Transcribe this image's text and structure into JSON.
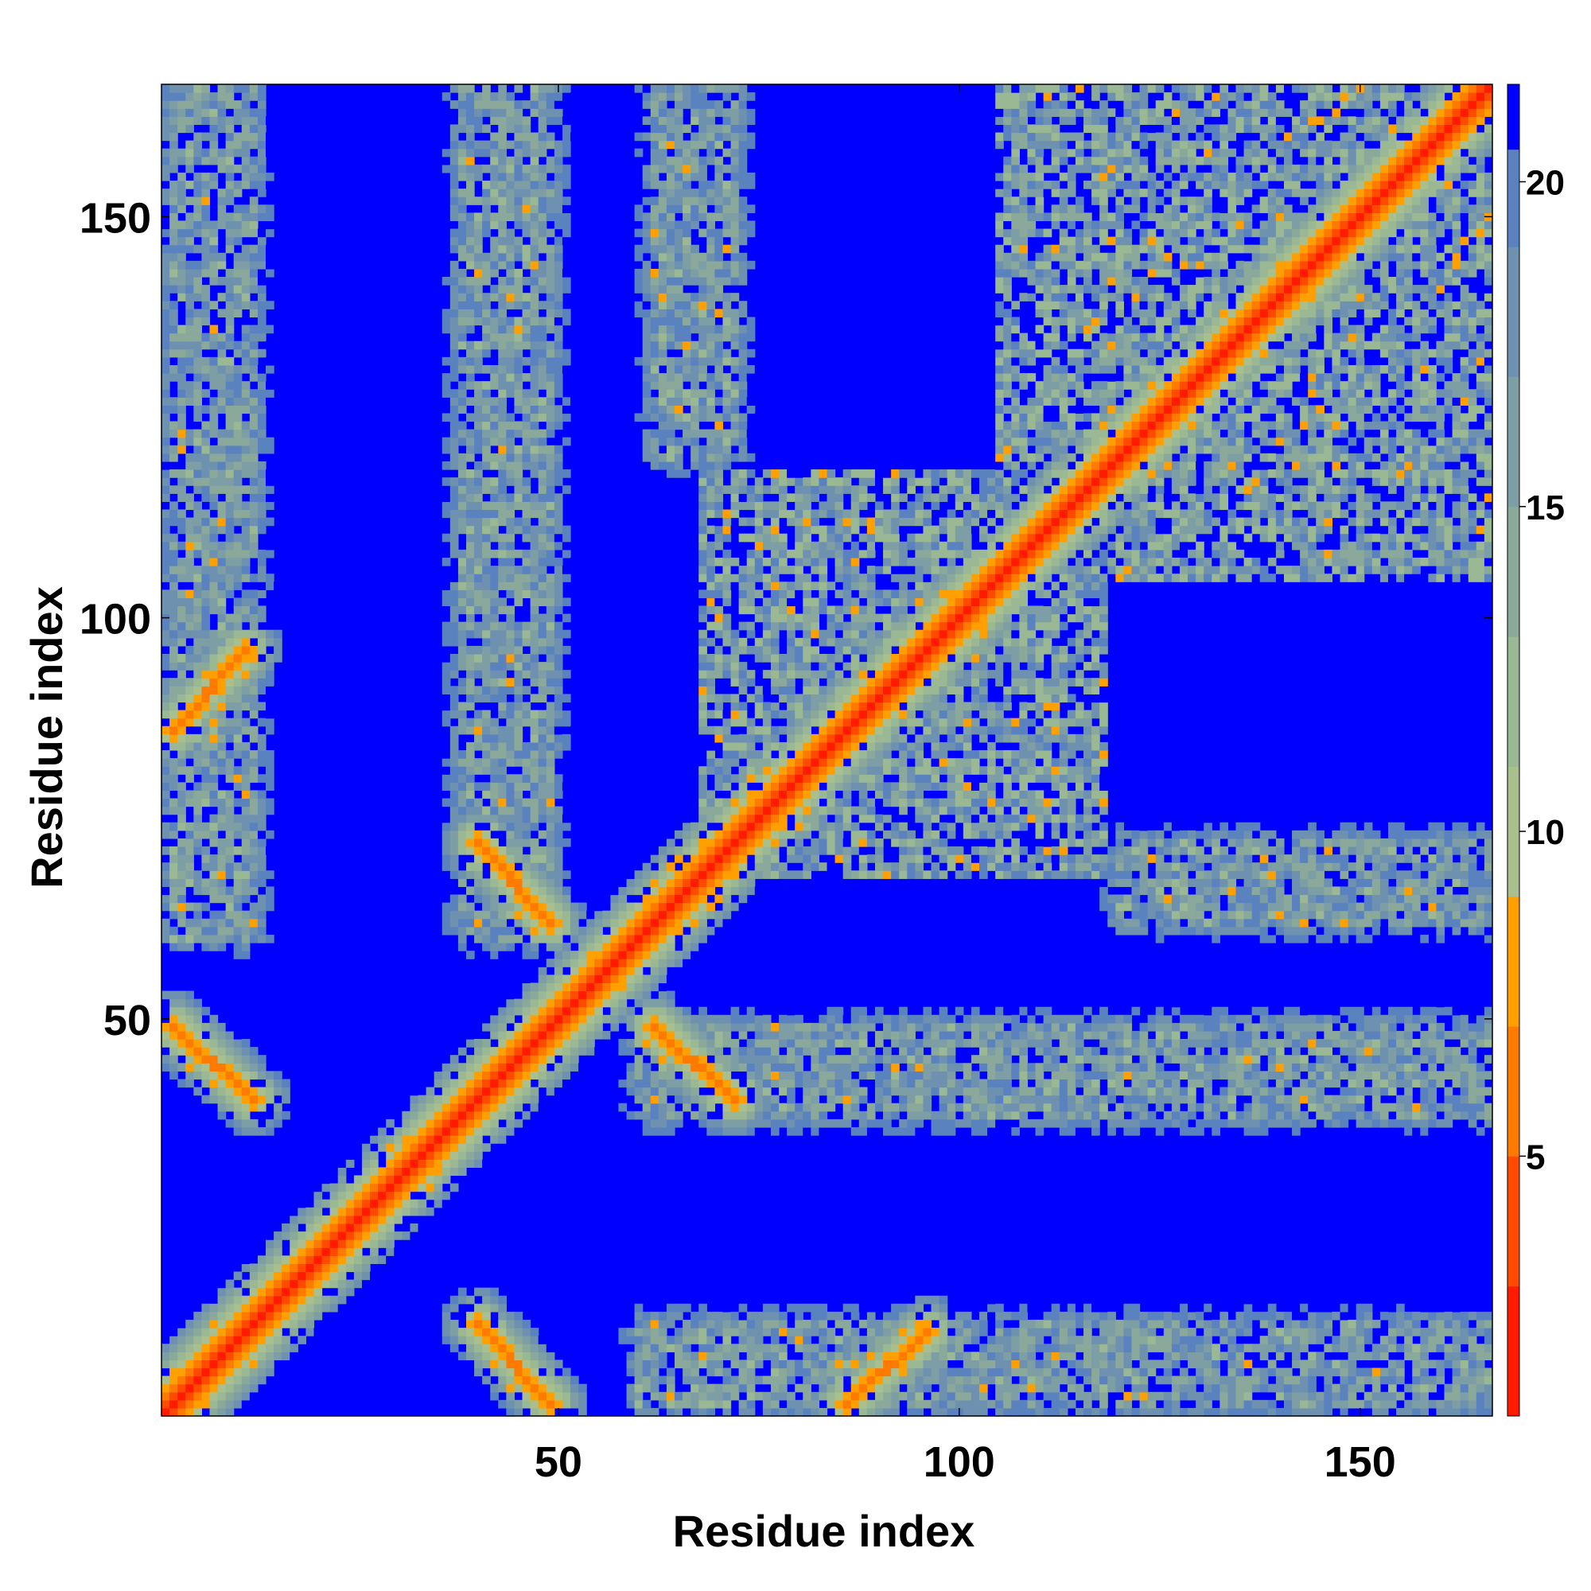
{
  "chart_data": {
    "type": "heatmap",
    "title": "",
    "xlabel": "Residue index",
    "ylabel": "Residue index",
    "xlim": [
      1,
      166
    ],
    "ylim": [
      1,
      166
    ],
    "xticks": [
      50,
      100,
      150
    ],
    "yticks": [
      50,
      100,
      150
    ],
    "colorbar": {
      "ticks": [
        5,
        10,
        15,
        20
      ],
      "range": [
        1,
        21.5
      ],
      "bins": [
        {
          "from": 1,
          "to": 3,
          "color": "#ff1a00"
        },
        {
          "from": 3,
          "to": 5,
          "color": "#ff4a00"
        },
        {
          "from": 5,
          "to": 7,
          "color": "#ff7a00"
        },
        {
          "from": 7,
          "to": 9,
          "color": "#ffa000"
        },
        {
          "from": 9,
          "to": 11,
          "color": "#a9c08e"
        },
        {
          "from": 11,
          "to": 13,
          "color": "#9ab894"
        },
        {
          "from": 13,
          "to": 15,
          "color": "#8aa99b"
        },
        {
          "from": 15,
          "to": 17,
          "color": "#7e9ea5"
        },
        {
          "from": 17,
          "to": 19,
          "color": "#6f91b0"
        },
        {
          "from": 19,
          "to": 20.5,
          "color": "#5a82bf"
        },
        {
          "from": 20.5,
          "to": 21.5,
          "color": "#0000ff"
        }
      ]
    },
    "value_semantics": "pairwise residue distance; saturated at 20 and above",
    "contact_features": [
      {
        "kind": "diagonal",
        "from": 1,
        "to": 166
      },
      {
        "kind": "antiparallel",
        "x": [
          38,
          49
        ],
        "y": [
          11,
          2
        ]
      },
      {
        "kind": "antiparallel",
        "x": [
          60,
          72
        ],
        "y": [
          48,
          40
        ]
      },
      {
        "kind": "antiparallel",
        "x": [
          2,
          12
        ],
        "y": [
          49,
          40
        ]
      },
      {
        "kind": "antiparallel",
        "x": [
          40,
          49
        ],
        "y": [
          72,
          62
        ]
      },
      {
        "kind": "parallel",
        "x": [
          86,
          98
        ],
        "y": [
          2,
          12
        ]
      },
      {
        "kind": "parallel",
        "x": [
          2,
          11
        ],
        "y": [
          86,
          96
        ]
      },
      {
        "kind": "band",
        "x": [
          60,
          166
        ],
        "y": [
          2,
          10
        ]
      },
      {
        "kind": "band",
        "x": [
          60,
          166
        ],
        "y": [
          40,
          50
        ]
      },
      {
        "kind": "band",
        "x": [
          120,
          166
        ],
        "y": [
          62,
          72
        ]
      },
      {
        "kind": "band",
        "x": [
          2,
          12
        ],
        "y": [
          60,
          166
        ]
      },
      {
        "kind": "band",
        "x": [
          38,
          49
        ],
        "y": [
          60,
          166
        ]
      },
      {
        "kind": "band",
        "x": [
          62,
          72
        ],
        "y": [
          120,
          166
        ]
      },
      {
        "kind": "cluster",
        "x": [
          68,
          118
        ],
        "y": [
          68,
          118
        ]
      },
      {
        "kind": "cluster",
        "x": [
          105,
          166
        ],
        "y": [
          105,
          166
        ]
      }
    ]
  }
}
